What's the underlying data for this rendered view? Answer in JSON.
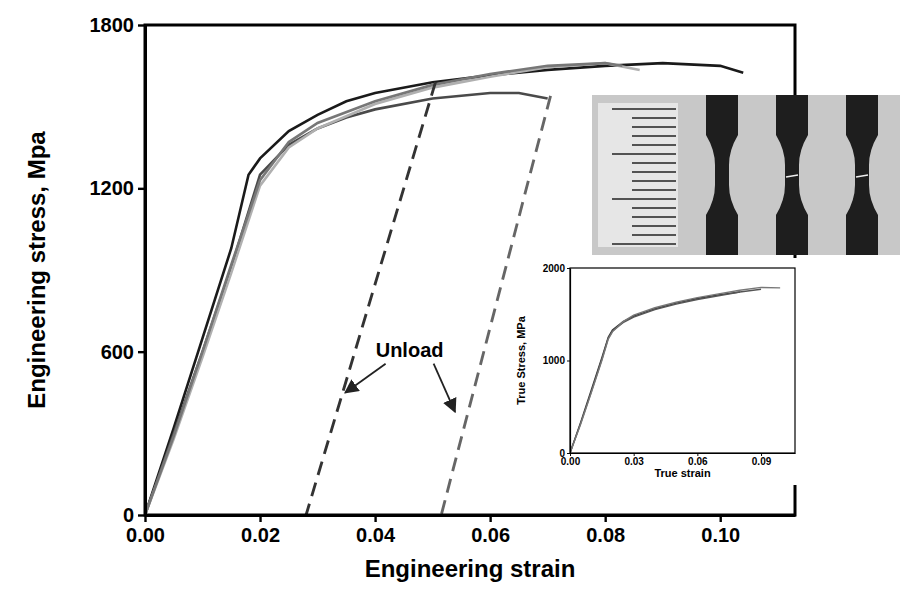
{
  "chart_data": [
    {
      "type": "line",
      "x_label": "Engineering strain",
      "y_label": "Engineering stress, Mpa",
      "xlim": [
        0,
        0.113
      ],
      "ylim": [
        0,
        1800
      ],
      "xticks": [
        {
          "value": 0,
          "label": "0.00"
        },
        {
          "value": 0.02,
          "label": "0.02"
        },
        {
          "value": 0.04,
          "label": "0.04"
        },
        {
          "value": 0.06,
          "label": "0.06"
        },
        {
          "value": 0.08,
          "label": "0.08"
        },
        {
          "value": 0.1,
          "label": "0.10"
        }
      ],
      "yticks": [
        0,
        600,
        1200,
        1800
      ],
      "series": [
        {
          "color": "#1a1a1a",
          "line_style": "solid",
          "x": [
            0,
            0.005,
            0.01,
            0.015,
            0.018,
            0.02,
            0.025,
            0.03,
            0.035,
            0.04,
            0.05,
            0.06,
            0.07,
            0.08,
            0.09,
            0.1,
            0.104
          ],
          "values": [
            0,
            320,
            650,
            980,
            1250,
            1310,
            1410,
            1470,
            1520,
            1550,
            1590,
            1615,
            1635,
            1650,
            1660,
            1650,
            1625
          ]
        },
        {
          "color": "#4a4a4a",
          "line_style": "solid",
          "x": [
            0,
            0.005,
            0.01,
            0.015,
            0.02,
            0.025,
            0.03,
            0.035,
            0.04,
            0.05,
            0.06,
            0.065,
            0.07
          ],
          "values": [
            0,
            300,
            600,
            910,
            1250,
            1360,
            1420,
            1460,
            1490,
            1530,
            1550,
            1550,
            1530
          ]
        },
        {
          "color": "#b0b0b0",
          "line_style": "solid",
          "x": [
            0,
            0.005,
            0.01,
            0.015,
            0.02,
            0.025,
            0.03,
            0.04,
            0.05,
            0.06,
            0.07,
            0.08,
            0.086
          ],
          "values": [
            0,
            280,
            580,
            890,
            1210,
            1350,
            1420,
            1510,
            1570,
            1610,
            1645,
            1660,
            1635
          ]
        },
        {
          "color": "#777777",
          "line_style": "solid",
          "x": [
            0,
            0.005,
            0.01,
            0.015,
            0.02,
            0.025,
            0.03,
            0.04,
            0.05,
            0.06,
            0.07,
            0.08,
            0.083
          ],
          "values": [
            0,
            290,
            600,
            920,
            1230,
            1370,
            1440,
            1520,
            1580,
            1620,
            1650,
            1660,
            1650
          ]
        },
        {
          "color": "#333333",
          "line_style": "dashed",
          "x": [
            0.0505,
            0.028
          ],
          "values": [
            1590,
            0
          ]
        },
        {
          "color": "#666666",
          "line_style": "dashed",
          "x": [
            0.0705,
            0.0515
          ],
          "values": [
            1540,
            0
          ]
        }
      ],
      "annotations": [
        {
          "text": "Unload",
          "x": 0.046,
          "y": 600,
          "points_to": [
            {
              "x": 0.0348,
              "y": 449
            },
            {
              "x": 0.0539,
              "y": 379
            }
          ]
        }
      ]
    },
    {
      "type": "line",
      "x_label": "True strain",
      "y_label": "True Stress, MPa",
      "xlim": [
        0,
        0.106
      ],
      "ylim": [
        0,
        2000
      ],
      "xticks": [
        {
          "value": 0,
          "label": "0.00"
        },
        {
          "value": 0.03,
          "label": "0.03"
        },
        {
          "value": 0.06,
          "label": "0.06"
        },
        {
          "value": 0.09,
          "label": "0.09"
        }
      ],
      "yticks": [
        0,
        1000,
        2000
      ],
      "series": [
        {
          "color": "#333333",
          "line_style": "solid",
          "x": [
            0,
            0.005,
            0.01,
            0.015,
            0.018,
            0.02,
            0.025,
            0.03,
            0.04,
            0.05,
            0.06,
            0.07,
            0.08
          ],
          "values": [
            0,
            330,
            680,
            1030,
            1250,
            1330,
            1420,
            1480,
            1560,
            1620,
            1670,
            1710,
            1740
          ]
        },
        {
          "color": "#555555",
          "line_style": "solid",
          "x": [
            0,
            0.005,
            0.01,
            0.015,
            0.018,
            0.02,
            0.025,
            0.03,
            0.04,
            0.05,
            0.06,
            0.07,
            0.08,
            0.09
          ],
          "values": [
            0,
            320,
            660,
            1010,
            1240,
            1320,
            1410,
            1470,
            1550,
            1610,
            1660,
            1700,
            1740,
            1770
          ]
        },
        {
          "color": "#777777",
          "line_style": "solid",
          "x": [
            0,
            0.005,
            0.01,
            0.015,
            0.018,
            0.02,
            0.025,
            0.03,
            0.04,
            0.05,
            0.06,
            0.07,
            0.08,
            0.09,
            0.099
          ],
          "values": [
            0,
            310,
            650,
            1000,
            1230,
            1310,
            1420,
            1490,
            1570,
            1630,
            1680,
            1720,
            1760,
            1790,
            1785
          ]
        }
      ]
    }
  ]
}
